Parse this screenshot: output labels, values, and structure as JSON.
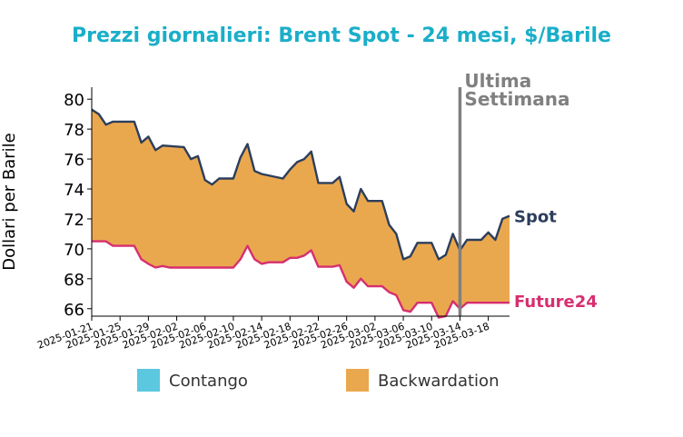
{
  "chart_data": {
    "type": "area",
    "title": "Prezzi giornalieri: Brent Spot - 24 mesi, $/Barile",
    "ylabel": "Dollari per Barile",
    "xlabel": "",
    "ylim": [
      65.5,
      80.8
    ],
    "yticks": [
      66,
      68,
      70,
      72,
      74,
      76,
      78,
      80
    ],
    "xlim": [
      "2025-01-21",
      "2025-03-21"
    ],
    "xticks": [
      "2025-01-21",
      "2025-01-25",
      "2025-01-29",
      "2025-02-02",
      "2025-02-06",
      "2025-02-10",
      "2025-02-14",
      "2025-02-18",
      "2025-02-22",
      "2025-02-26",
      "2025-03-02",
      "2025-03-06",
      "2025-03-10",
      "2025-03-14",
      "2025-03-18"
    ],
    "marker": {
      "date": "2025-03-14",
      "label_line1": "Ultima",
      "label_line2": "Settimana"
    },
    "series": [
      {
        "name": "Spot",
        "color": "#2c3e5c",
        "points": [
          [
            "2025-01-21",
            79.3
          ],
          [
            "2025-01-22",
            79.0
          ],
          [
            "2025-01-23",
            78.3
          ],
          [
            "2025-01-24",
            78.5
          ],
          [
            "2025-01-27",
            78.5
          ],
          [
            "2025-01-28",
            77.1
          ],
          [
            "2025-01-29",
            77.5
          ],
          [
            "2025-01-30",
            76.6
          ],
          [
            "2025-01-31",
            76.9
          ],
          [
            "2025-02-03",
            76.8
          ],
          [
            "2025-02-04",
            76.0
          ],
          [
            "2025-02-05",
            76.2
          ],
          [
            "2025-02-06",
            74.6
          ],
          [
            "2025-02-07",
            74.3
          ],
          [
            "2025-02-08",
            74.7
          ],
          [
            "2025-02-10",
            74.7
          ],
          [
            "2025-02-11",
            76.1
          ],
          [
            "2025-02-12",
            77.0
          ],
          [
            "2025-02-13",
            75.2
          ],
          [
            "2025-02-14",
            75.0
          ],
          [
            "2025-02-17",
            74.7
          ],
          [
            "2025-02-18",
            75.3
          ],
          [
            "2025-02-19",
            75.8
          ],
          [
            "2025-02-20",
            76.0
          ],
          [
            "2025-02-21",
            76.5
          ],
          [
            "2025-02-22",
            74.4
          ],
          [
            "2025-02-24",
            74.4
          ],
          [
            "2025-02-25",
            74.8
          ],
          [
            "2025-02-26",
            73.0
          ],
          [
            "2025-02-27",
            72.5
          ],
          [
            "2025-02-28",
            74.0
          ],
          [
            "2025-03-01",
            73.2
          ],
          [
            "2025-03-03",
            73.2
          ],
          [
            "2025-03-04",
            71.6
          ],
          [
            "2025-03-05",
            71.0
          ],
          [
            "2025-03-06",
            69.3
          ],
          [
            "2025-03-07",
            69.5
          ],
          [
            "2025-03-08",
            70.4
          ],
          [
            "2025-03-10",
            70.4
          ],
          [
            "2025-03-11",
            69.3
          ],
          [
            "2025-03-12",
            69.6
          ],
          [
            "2025-03-13",
            71.0
          ],
          [
            "2025-03-14",
            69.9
          ],
          [
            "2025-03-15",
            70.6
          ],
          [
            "2025-03-17",
            70.6
          ],
          [
            "2025-03-18",
            71.1
          ],
          [
            "2025-03-19",
            70.6
          ],
          [
            "2025-03-20",
            72.0
          ],
          [
            "2025-03-21",
            72.2
          ]
        ]
      },
      {
        "name": "Future24",
        "color": "#d62f6f",
        "points": [
          [
            "2025-01-21",
            70.5
          ],
          [
            "2025-01-22",
            70.5
          ],
          [
            "2025-01-23",
            70.5
          ],
          [
            "2025-01-24",
            70.2
          ],
          [
            "2025-01-27",
            70.2
          ],
          [
            "2025-01-28",
            69.3
          ],
          [
            "2025-01-29",
            69.0
          ],
          [
            "2025-01-30",
            68.75
          ],
          [
            "2025-01-31",
            68.85
          ],
          [
            "2025-02-01",
            68.75
          ],
          [
            "2025-02-04",
            68.75
          ],
          [
            "2025-02-07",
            68.75
          ],
          [
            "2025-02-10",
            68.75
          ],
          [
            "2025-02-11",
            69.3
          ],
          [
            "2025-02-12",
            70.2
          ],
          [
            "2025-02-13",
            69.3
          ],
          [
            "2025-02-14",
            69.0
          ],
          [
            "2025-02-15",
            69.1
          ],
          [
            "2025-02-17",
            69.1
          ],
          [
            "2025-02-18",
            69.4
          ],
          [
            "2025-02-19",
            69.4
          ],
          [
            "2025-02-20",
            69.55
          ],
          [
            "2025-02-21",
            69.9
          ],
          [
            "2025-02-22",
            68.8
          ],
          [
            "2025-02-24",
            68.8
          ],
          [
            "2025-02-25",
            68.9
          ],
          [
            "2025-02-26",
            67.8
          ],
          [
            "2025-02-27",
            67.4
          ],
          [
            "2025-02-28",
            68.0
          ],
          [
            "2025-03-01",
            67.5
          ],
          [
            "2025-03-03",
            67.5
          ],
          [
            "2025-03-04",
            67.1
          ],
          [
            "2025-03-05",
            66.9
          ],
          [
            "2025-03-06",
            65.9
          ],
          [
            "2025-03-07",
            65.8
          ],
          [
            "2025-03-08",
            66.4
          ],
          [
            "2025-03-10",
            66.4
          ],
          [
            "2025-03-11",
            65.4
          ],
          [
            "2025-03-12",
            65.5
          ],
          [
            "2025-03-13",
            66.5
          ],
          [
            "2025-03-14",
            66.0
          ],
          [
            "2025-03-15",
            66.4
          ],
          [
            "2025-03-21",
            66.4
          ]
        ]
      }
    ],
    "legend": [
      {
        "label": "Contango",
        "color": "#5bc8df"
      },
      {
        "label": "Backwardation",
        "color": "#eaa84e"
      }
    ],
    "legend_position": "bottom-center",
    "colors": {
      "title": "#1aaec9",
      "marker": "#808080",
      "axis": "#000000"
    }
  }
}
